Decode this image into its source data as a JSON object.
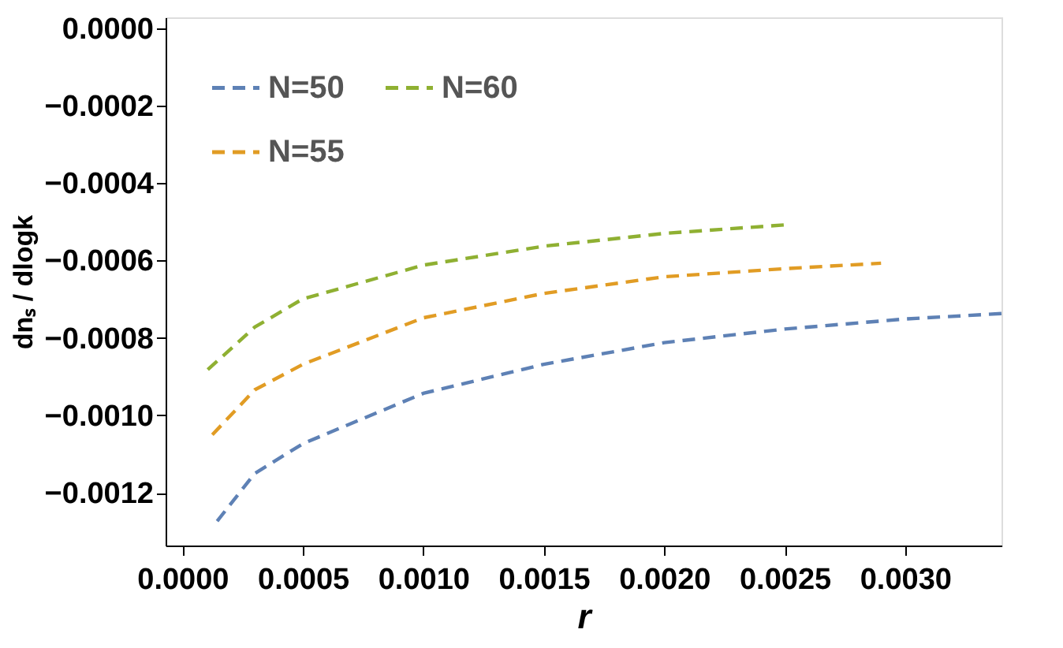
{
  "chart_data": {
    "type": "line",
    "xlabel": "r",
    "ylabel": "dnₛ / dlogk",
    "xlim": [
      -7e-05,
      0.0034
    ],
    "ylim": [
      -0.001336,
      2.8e-05
    ],
    "xticks": [
      {
        "value": 0,
        "label": "0.0000"
      },
      {
        "value": 0.0005,
        "label": "0.0005"
      },
      {
        "value": 0.001,
        "label": "0.0010"
      },
      {
        "value": 0.0015,
        "label": "0.0015"
      },
      {
        "value": 0.002,
        "label": "0.0020"
      },
      {
        "value": 0.0025,
        "label": "0.0025"
      },
      {
        "value": 0.003,
        "label": "0.0030"
      }
    ],
    "yticks": [
      {
        "value": 0,
        "label": "0.0000"
      },
      {
        "value": -0.0002,
        "label": "−0.0002"
      },
      {
        "value": -0.0004,
        "label": "−0.0004"
      },
      {
        "value": -0.0006,
        "label": "−0.0006"
      },
      {
        "value": -0.0008,
        "label": "−0.0008"
      },
      {
        "value": -0.001,
        "label": "−0.0010"
      },
      {
        "value": -0.0012,
        "label": "−0.0012"
      }
    ],
    "line_style": "dashed",
    "marker": "none",
    "grid": false,
    "legend": "top left",
    "series": [
      {
        "name": "N=50",
        "color": "#5e81b5",
        "x": [
          0.000144,
          0.0003,
          0.0005,
          0.001,
          0.0015,
          0.002,
          0.0025,
          0.003,
          0.0034
        ],
        "values": [
          -0.001273,
          -0.00115,
          -0.001073,
          -0.000943,
          -0.000868,
          -0.000812,
          -0.000777,
          -0.000751,
          -0.000737
        ]
      },
      {
        "name": "N=55",
        "color": "#e19c24",
        "x": [
          0.000124,
          0.0003,
          0.0005,
          0.001,
          0.0015,
          0.002,
          0.0025,
          0.0029
        ],
        "values": [
          -0.00105,
          -0.000934,
          -0.000868,
          -0.000748,
          -0.000685,
          -0.000642,
          -0.000621,
          -0.000607
        ]
      },
      {
        "name": "N=60",
        "color": "#8fb032",
        "x": [
          0.000105,
          0.0003,
          0.0005,
          0.001,
          0.0015,
          0.002,
          0.0025
        ],
        "values": [
          -0.000882,
          -0.000772,
          -0.000699,
          -0.000612,
          -0.000563,
          -0.00053,
          -0.000508
        ]
      }
    ]
  }
}
